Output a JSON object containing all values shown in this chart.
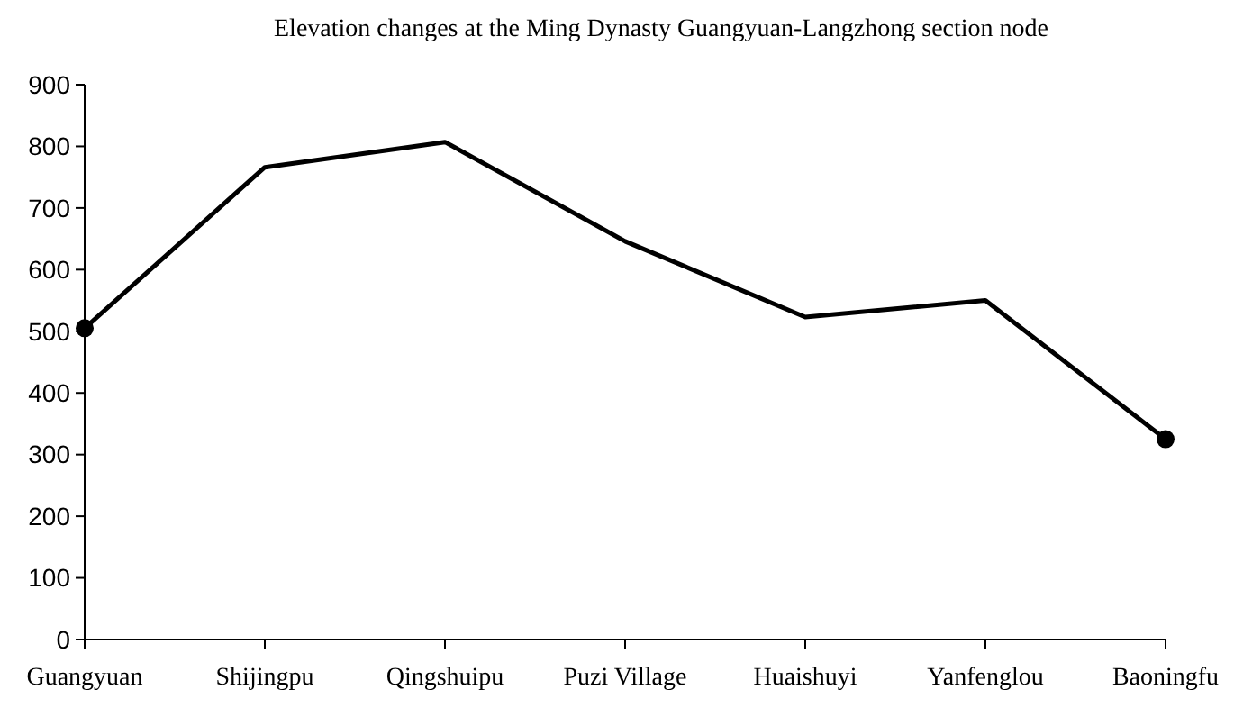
{
  "chart_data": {
    "type": "line",
    "title": "Elevation changes at the Ming Dynasty Guangyuan-Langzhong section node",
    "categories": [
      "Guangyuan",
      "Shijingpu",
      "Qingshuipu",
      "Puzi Village",
      "Huaishuyi",
      "Yanfenglou",
      "Baoningfu"
    ],
    "series": [
      {
        "color": "#000000",
        "values": [
          505,
          766,
          807,
          646,
          523,
          550,
          325
        ],
        "marker": "none"
      },
      {
        "type": "scatter",
        "color": "#000000",
        "values": [
          505,
          null,
          null,
          null,
          null,
          null,
          325
        ],
        "marker": "circle"
      }
    ],
    "ylim": [
      0,
      900
    ],
    "yticks": [
      0,
      100,
      200,
      300,
      400,
      500,
      600,
      700,
      800,
      900
    ],
    "grid": false,
    "line_style": "solid"
  }
}
